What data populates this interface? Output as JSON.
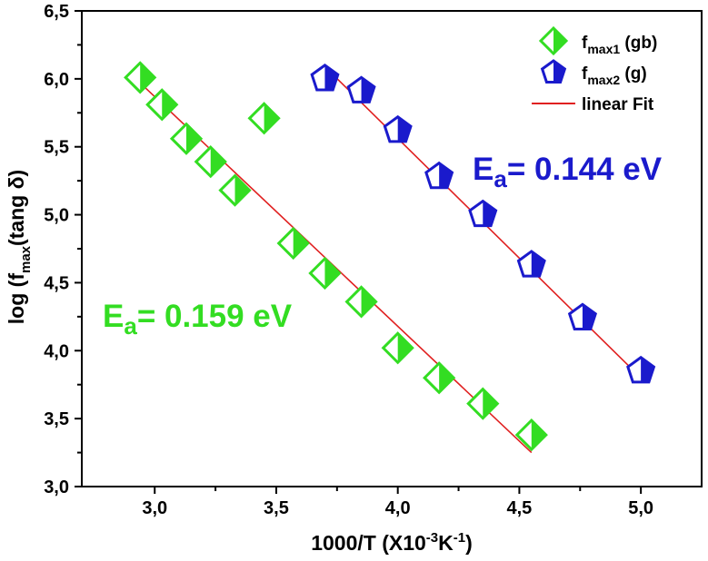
{
  "chart_data": {
    "type": "scatter",
    "title": "",
    "xlabel": {
      "main": "1000/T (X10",
      "sup1": "-3",
      "mid": "K",
      "sup2": "-1",
      "end": ")"
    },
    "ylabel": {
      "main": "log (f",
      "sub": "max",
      "end": "(tang δ)"
    },
    "xlim": [
      2.7,
      5.25
    ],
    "ylim": [
      3.0,
      6.5
    ],
    "x_ticks": [
      3.0,
      3.5,
      4.0,
      4.5,
      5.0
    ],
    "x_tick_labels": [
      "3,0",
      "3,5",
      "4,0",
      "4,5",
      "5,0"
    ],
    "y_ticks": [
      3.0,
      3.5,
      4.0,
      4.5,
      5.0,
      5.5,
      6.0,
      6.5
    ],
    "y_tick_labels": [
      "3,0",
      "3,5",
      "4,0",
      "4,5",
      "5,0",
      "5,5",
      "6,0",
      "6,5"
    ],
    "grid": false,
    "legend_position": "top-right",
    "series": [
      {
        "name": "fmax1 (gb)",
        "legend_main": "f",
        "legend_sub": "max1",
        "legend_end": " (gb)",
        "marker": "diamond",
        "color": "#33dd22",
        "points": [
          [
            2.94,
            6.01
          ],
          [
            3.03,
            5.81
          ],
          [
            3.13,
            5.56
          ],
          [
            3.23,
            5.39
          ],
          [
            3.33,
            5.18
          ],
          [
            3.45,
            5.71
          ],
          [
            3.57,
            4.79
          ],
          [
            3.7,
            4.57
          ],
          [
            3.85,
            4.36
          ],
          [
            4.0,
            4.02
          ],
          [
            4.17,
            3.8
          ],
          [
            4.35,
            3.61
          ],
          [
            4.55,
            3.38
          ]
        ]
      },
      {
        "name": "fmax2 (g)",
        "legend_main": "f",
        "legend_sub": "max2",
        "legend_end": " (g)",
        "marker": "pentagon",
        "color": "#1a1acc",
        "points": [
          [
            3.7,
            6.0
          ],
          [
            3.85,
            5.91
          ],
          [
            4.0,
            5.62
          ],
          [
            4.17,
            5.28
          ],
          [
            4.35,
            5.0
          ],
          [
            4.55,
            4.63
          ],
          [
            4.76,
            4.24
          ],
          [
            5.0,
            3.85
          ]
        ]
      }
    ],
    "fits": [
      {
        "name": "linear Fit",
        "color": "#e02020",
        "x": [
          2.94,
          4.55
        ],
        "y": [
          5.97,
          3.25
        ]
      },
      {
        "name": "linear Fit",
        "color": "#e02020",
        "x": [
          3.7,
          5.0
        ],
        "y": [
          6.09,
          3.8
        ]
      }
    ],
    "fit_legend_label": "linear Fit",
    "annotations": [
      {
        "prefix": "E",
        "sub": "a",
        "text": "= 0.144 eV",
        "color": "#1a1acc"
      },
      {
        "prefix": "E",
        "sub": "a",
        "text": "= 0.159 eV",
        "color": "#33dd22"
      }
    ]
  }
}
